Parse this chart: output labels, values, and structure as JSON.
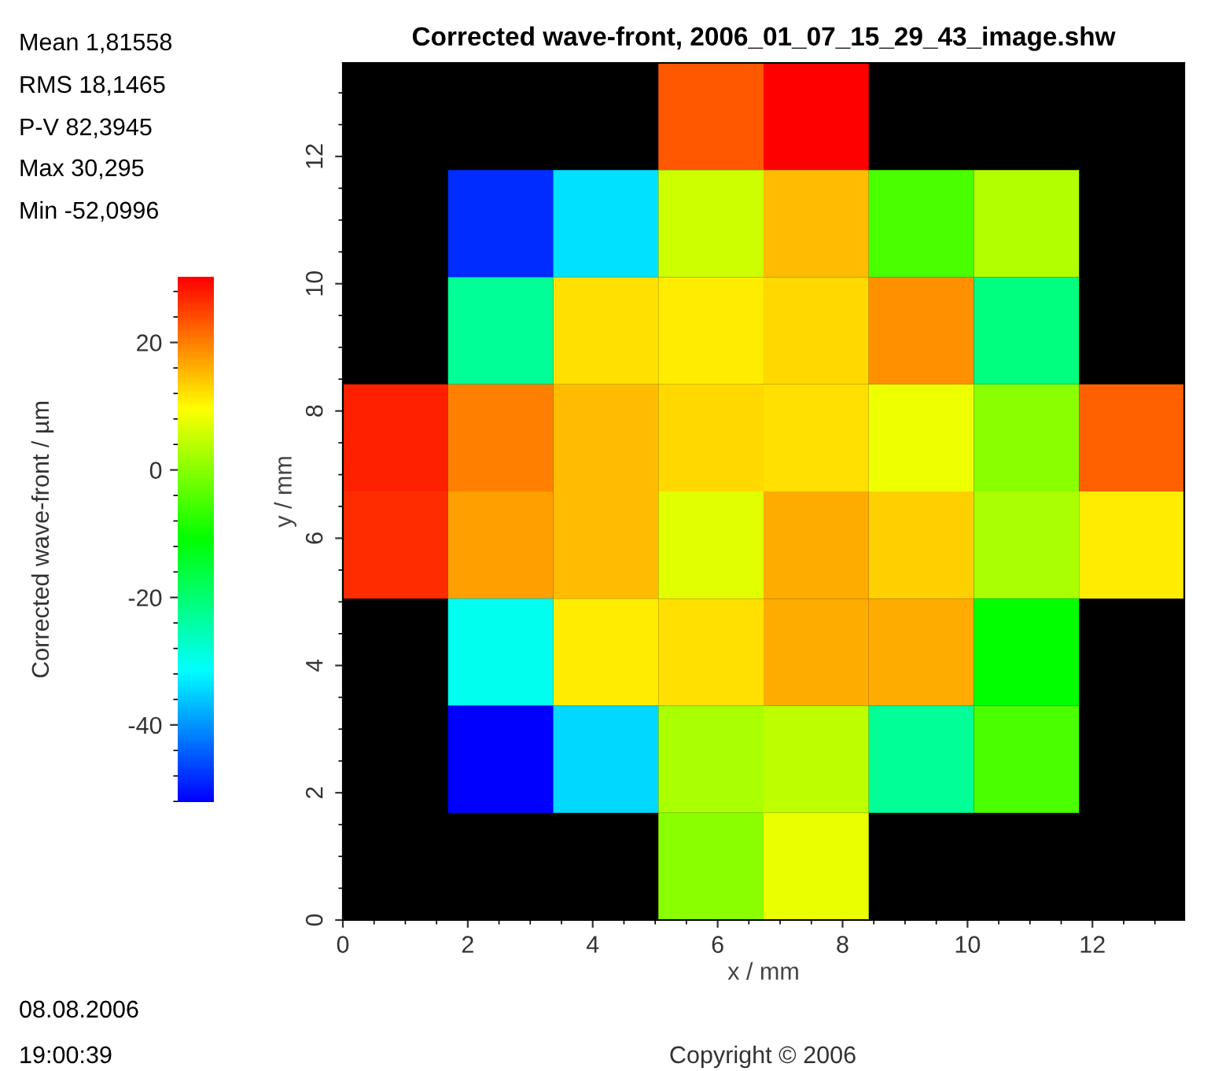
{
  "chart_data": {
    "type": "heatmap",
    "title": "Corrected wave-front, 2006_01_07_15_29_43_image.shw",
    "xlabel": "x / mm",
    "ylabel": "y / mm",
    "clabel": "Corrected wave-front / µm",
    "cells": [
      [
        null,
        null,
        null,
        23.1,
        30.3,
        null,
        null,
        null
      ],
      [
        null,
        -48.3,
        -33.9,
        5.6,
        14.9,
        -5.1,
        3.5,
        null
      ],
      [
        null,
        -22.9,
        12.1,
        11.1,
        12.8,
        18.6,
        -21.2,
        null
      ],
      [
        27.6,
        20.0,
        14.9,
        12.8,
        12.1,
        8.3,
        0.1,
        22.4
      ],
      [
        26.5,
        17.3,
        14.9,
        7.3,
        16.2,
        13.5,
        2.8,
        11.1
      ],
      [
        null,
        -30.1,
        11.1,
        12.1,
        16.2,
        16.2,
        -10.9,
        null
      ],
      [
        null,
        -52.1,
        -34.6,
        2.8,
        4.5,
        -22.9,
        -5.1,
        null
      ],
      [
        null,
        null,
        null,
        0.1,
        8.0,
        null,
        null,
        null
      ]
    ],
    "xlim": [
      0,
      13.47
    ],
    "ylim": [
      0,
      13.47
    ],
    "xticks": [
      0,
      2,
      4,
      6,
      8,
      10,
      12
    ],
    "yticks": [
      0,
      2,
      4,
      6,
      8,
      10,
      12
    ],
    "clim": [
      -52.1,
      30.3
    ],
    "cticks": [
      -40,
      -20,
      0,
      20
    ],
    "annotations": [
      "Mean 1,81558",
      "RMS 18,1465",
      "P-V 82,3945",
      "Max 30,295",
      "Min -52,0996",
      "08.08.2006",
      "19:00:39",
      "Copyright © 2006"
    ]
  }
}
